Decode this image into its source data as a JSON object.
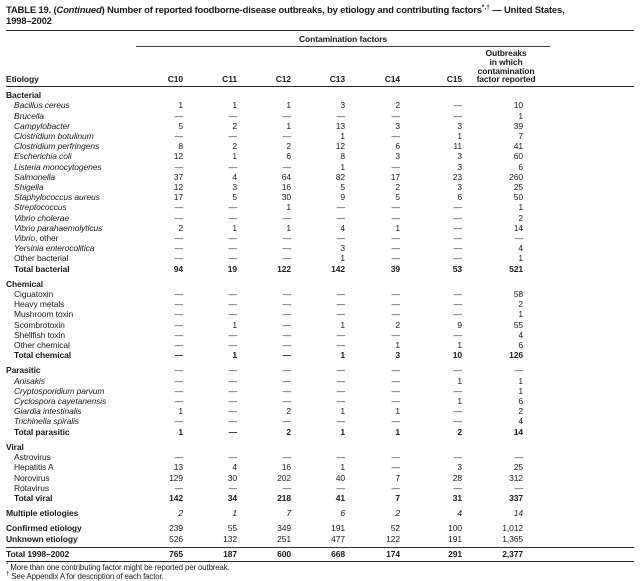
{
  "title": {
    "prefix": "TABLE 19. (",
    "continued": "Continued",
    "middle": ") Number of reported foodborne-disease outbreaks, by etiology and contributing factors",
    "sup_markers": "*,†",
    "suffix": " — United States,",
    "line2": "1998–2002"
  },
  "header": {
    "group_label": "Contamination factors",
    "etiology_label": "Etiology",
    "factor_columns": [
      "C10",
      "C11",
      "C12",
      "C13",
      "C14",
      "C15"
    ],
    "outbreaks_label_lines": [
      "Outbreaks",
      "in which",
      "contamination",
      "factor reported"
    ]
  },
  "sections": [
    {
      "label": "Bacterial",
      "values": null,
      "rows": [
        {
          "label": "Bacillus cereus",
          "italic": true,
          "values": [
            "1",
            "1",
            "1",
            "3",
            "2",
            "—",
            "10"
          ]
        },
        {
          "label": "Brucella",
          "italic": true,
          "values": [
            "—",
            "—",
            "—",
            "—",
            "—",
            "—",
            "1"
          ]
        },
        {
          "label": "Campylobacter",
          "italic": true,
          "values": [
            "5",
            "2",
            "1",
            "13",
            "3",
            "3",
            "39"
          ]
        },
        {
          "label": "Clostridium botulinum",
          "italic": true,
          "values": [
            "—",
            "—",
            "—",
            "1",
            "—",
            "1",
            "7"
          ]
        },
        {
          "label": "Clostridium perfringens",
          "italic": true,
          "values": [
            "8",
            "2",
            "2",
            "12",
            "6",
            "11",
            "41"
          ]
        },
        {
          "label": "Escherichia coli",
          "italic": true,
          "values": [
            "12",
            "1",
            "6",
            "8",
            "3",
            "3",
            "60"
          ]
        },
        {
          "label": "Listeria monocytogenes",
          "italic": true,
          "values": [
            "—",
            "—",
            "—",
            "1",
            "—",
            "3",
            "6"
          ]
        },
        {
          "label": "Salmonella",
          "italic": true,
          "values": [
            "37",
            "4",
            "64",
            "82",
            "17",
            "23",
            "260"
          ]
        },
        {
          "label": "Shigella",
          "italic": true,
          "values": [
            "12",
            "3",
            "16",
            "5",
            "2",
            "3",
            "25"
          ]
        },
        {
          "label": "Staphylococcus aureus",
          "italic": true,
          "values": [
            "17",
            "5",
            "30",
            "9",
            "5",
            "6",
            "50"
          ]
        },
        {
          "label": "Streptococcus",
          "italic": true,
          "values": [
            "—",
            "—",
            "1",
            "—",
            "—",
            "—",
            "1"
          ]
        },
        {
          "label": "Vibrio cholerae",
          "italic": true,
          "values": [
            "—",
            "—",
            "—",
            "—",
            "—",
            "—",
            "2"
          ]
        },
        {
          "label": "Vibrio parahaemolyticus",
          "italic": true,
          "values": [
            "2",
            "1",
            "1",
            "4",
            "1",
            "—",
            "14"
          ]
        },
        {
          "label": "Vibrio",
          "italic": true,
          "suffix": ", other",
          "values": [
            "—",
            "—",
            "—",
            "—",
            "—",
            "—",
            "—"
          ]
        },
        {
          "label": "Yersinia enterocolitica",
          "italic": true,
          "values": [
            "—",
            "—",
            "—",
            "3",
            "—",
            "—",
            "4"
          ]
        },
        {
          "label": "Other bacterial",
          "italic": false,
          "values": [
            "—",
            "—",
            "—",
            "1",
            "—",
            "—",
            "1"
          ]
        },
        {
          "label": "Total bacterial",
          "italic": false,
          "total": true,
          "values": [
            "94",
            "19",
            "122",
            "142",
            "39",
            "53",
            "521"
          ]
        }
      ]
    },
    {
      "label": "Chemical",
      "values": null,
      "rows": [
        {
          "label": "Ciguatoxin",
          "italic": false,
          "values": [
            "—",
            "—",
            "—",
            "—",
            "—",
            "—",
            "58"
          ]
        },
        {
          "label": "Heavy metals",
          "italic": false,
          "values": [
            "—",
            "—",
            "—",
            "—",
            "—",
            "—",
            "2"
          ]
        },
        {
          "label": "Mushroom toxin",
          "italic": false,
          "values": [
            "—",
            "—",
            "—",
            "—",
            "—",
            "—",
            "1"
          ]
        },
        {
          "label": "Scombrotoxin",
          "italic": false,
          "values": [
            "—",
            "1",
            "—",
            "1",
            "2",
            "9",
            "55"
          ]
        },
        {
          "label": "Shellfish toxin",
          "italic": false,
          "values": [
            "—",
            "—",
            "—",
            "—",
            "—",
            "—",
            "4"
          ]
        },
        {
          "label": "Other chemical",
          "italic": false,
          "values": [
            "—",
            "—",
            "—",
            "—",
            "1",
            "1",
            "6"
          ]
        },
        {
          "label": "Total chemical",
          "italic": false,
          "total": true,
          "values": [
            "—",
            "1",
            "—",
            "1",
            "3",
            "10",
            "126"
          ]
        }
      ]
    },
    {
      "label": "Parasitic",
      "values": [
        "—",
        "—",
        "—",
        "—",
        "—",
        "—",
        "—"
      ],
      "rows": [
        {
          "label": "Anisakis",
          "italic": true,
          "values": [
            "—",
            "—",
            "—",
            "—",
            "—",
            "1",
            "1"
          ]
        },
        {
          "label": "Cryptosporidium parvum",
          "italic": true,
          "values": [
            "—",
            "—",
            "—",
            "—",
            "—",
            "—",
            "1"
          ]
        },
        {
          "label": "Cyclospora cayetanensis",
          "italic": true,
          "values": [
            "—",
            "—",
            "—",
            "—",
            "—",
            "1",
            "6"
          ]
        },
        {
          "label": "Giardia intestinalis",
          "italic": true,
          "values": [
            "1",
            "—",
            "2",
            "1",
            "1",
            "—",
            "2"
          ]
        },
        {
          "label": "Trichinella spiralis",
          "italic": true,
          "values": [
            "—",
            "—",
            "—",
            "—",
            "—",
            "—",
            "4"
          ]
        },
        {
          "label": "Total parasitic",
          "italic": false,
          "total": true,
          "values": [
            "1",
            "—",
            "2",
            "1",
            "1",
            "2",
            "14"
          ]
        }
      ]
    },
    {
      "label": "Viral",
      "values": null,
      "rows": [
        {
          "label": "Astrovirus",
          "italic": false,
          "values": [
            "—",
            "—",
            "—",
            "—",
            "—",
            "—",
            "—"
          ]
        },
        {
          "label": "Hepatitis A",
          "italic": false,
          "values": [
            "13",
            "4",
            "16",
            "1",
            "—",
            "3",
            "25"
          ]
        },
        {
          "label": "Norovirus",
          "italic": false,
          "values": [
            "129",
            "30",
            "202",
            "40",
            "7",
            "28",
            "312"
          ]
        },
        {
          "label": "Rotavirus",
          "italic": false,
          "values": [
            "—",
            "—",
            "—",
            "—",
            "—",
            "—",
            "—"
          ]
        },
        {
          "label": "Total viral",
          "italic": false,
          "total": true,
          "values": [
            "142",
            "34",
            "218",
            "41",
            "7",
            "31",
            "337"
          ]
        }
      ]
    }
  ],
  "summary_rows": [
    {
      "label": "Multiple etiologies",
      "style": "mult",
      "values": [
        "2",
        "1",
        "7",
        "6",
        "2",
        "4",
        "14"
      ]
    },
    {
      "label": "Confirmed etiology",
      "style": "boldlbl",
      "values": [
        "239",
        "55",
        "349",
        "191",
        "52",
        "100",
        "1,012"
      ],
      "group_start": true
    },
    {
      "label": "Unknown etiology",
      "style": "boldlbl",
      "values": [
        "526",
        "132",
        "251",
        "477",
        "122",
        "191",
        "1,365"
      ]
    }
  ],
  "grand_total": {
    "label": "Total 1998–2002",
    "values": [
      "765",
      "187",
      "600",
      "668",
      "174",
      "291",
      "2,377"
    ]
  },
  "footnotes": [
    {
      "marker": "*",
      "text": "More than one contributing factor might be reported per outbreak."
    },
    {
      "marker": "†",
      "text": "See Appendix A for description of each factor."
    }
  ]
}
